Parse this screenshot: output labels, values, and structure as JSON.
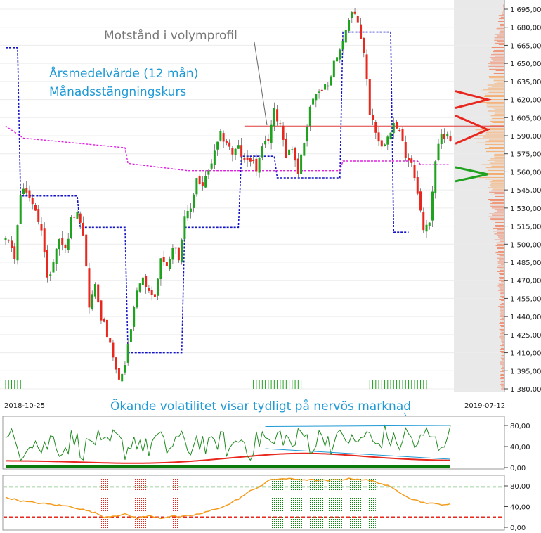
{
  "chart_data": [
    {
      "type": "candlestick",
      "panel": "price",
      "y_ticks": [
        "1 695,00",
        "1 680,00",
        "1 665,00",
        "1 650,00",
        "1 635,00",
        "1 620,00",
        "1 605,00",
        "1 590,00",
        "1 575,00",
        "1 560,00",
        "1 545,00",
        "1 530,00",
        "1 515,00",
        "1 500,00",
        "1 485,00",
        "1 470,00",
        "1 455,00",
        "1 440,00",
        "1 425,00",
        "1 410,00",
        "1 395,00",
        "1 380,00"
      ],
      "ylim": [
        1378,
        1700
      ],
      "x_start_label": "2018-10-25",
      "x_end_label": "2019-07-12",
      "bars": 144,
      "close_keypoints": [
        [
          0,
          1505
        ],
        [
          3,
          1490
        ],
        [
          5,
          1540
        ],
        [
          7,
          1545
        ],
        [
          9,
          1532
        ],
        [
          12,
          1515
        ],
        [
          14,
          1470
        ],
        [
          16,
          1485
        ],
        [
          18,
          1505
        ],
        [
          20,
          1495
        ],
        [
          22,
          1520
        ],
        [
          24,
          1530
        ],
        [
          26,
          1510
        ],
        [
          28,
          1450
        ],
        [
          30,
          1465
        ],
        [
          32,
          1440
        ],
        [
          34,
          1425
        ],
        [
          36,
          1405
        ],
        [
          38,
          1385
        ],
        [
          40,
          1400
        ],
        [
          42,
          1430
        ],
        [
          44,
          1460
        ],
        [
          46,
          1470
        ],
        [
          48,
          1462
        ],
        [
          50,
          1455
        ],
        [
          52,
          1490
        ],
        [
          54,
          1480
        ],
        [
          56,
          1500
        ],
        [
          58,
          1490
        ],
        [
          60,
          1520
        ],
        [
          62,
          1530
        ],
        [
          64,
          1555
        ],
        [
          66,
          1548
        ],
        [
          68,
          1560
        ],
        [
          70,
          1575
        ],
        [
          72,
          1590
        ],
        [
          74,
          1585
        ],
        [
          76,
          1575
        ],
        [
          78,
          1580
        ],
        [
          80,
          1568
        ],
        [
          82,
          1572
        ],
        [
          84,
          1562
        ],
        [
          86,
          1578
        ],
        [
          88,
          1588
        ],
        [
          90,
          1610
        ],
        [
          92,
          1600
        ],
        [
          94,
          1575
        ],
        [
          96,
          1580
        ],
        [
          98,
          1560
        ],
        [
          100,
          1585
        ],
        [
          102,
          1615
        ],
        [
          104,
          1625
        ],
        [
          106,
          1625
        ],
        [
          108,
          1635
        ],
        [
          110,
          1650
        ],
        [
          112,
          1660
        ],
        [
          114,
          1680
        ],
        [
          116,
          1692
        ],
        [
          118,
          1684
        ],
        [
          120,
          1660
        ],
        [
          122,
          1610
        ],
        [
          124,
          1595
        ],
        [
          126,
          1580
        ],
        [
          128,
          1592
        ],
        [
          130,
          1600
        ],
        [
          132,
          1592
        ],
        [
          134,
          1575
        ],
        [
          136,
          1568
        ],
        [
          138,
          1545
        ],
        [
          140,
          1510
        ],
        [
          142,
          1520
        ],
        [
          144,
          1570
        ],
        [
          146,
          1590
        ],
        [
          148,
          1592
        ],
        [
          149,
          1588
        ]
      ],
      "annual_average_keypoints": [
        [
          0,
          1598
        ],
        [
          6,
          1588
        ],
        [
          40,
          1580
        ],
        [
          41,
          1567
        ],
        [
          61,
          1561
        ],
        [
          112,
          1561
        ],
        [
          113,
          1569
        ],
        [
          138,
          1569
        ],
        [
          139,
          1566
        ],
        [
          149,
          1566
        ]
      ],
      "monthly_close_keypoints": [
        [
          0,
          1663
        ],
        [
          4,
          1663
        ],
        [
          5,
          1540
        ],
        [
          24,
          1540
        ],
        [
          25,
          1514
        ],
        [
          40,
          1514
        ],
        [
          41,
          1410
        ],
        [
          59,
          1410
        ],
        [
          60,
          1514
        ],
        [
          78,
          1514
        ],
        [
          79,
          1573
        ],
        [
          90,
          1573
        ],
        [
          91,
          1555
        ],
        [
          112,
          1555
        ],
        [
          113,
          1676
        ],
        [
          129,
          1676
        ],
        [
          130,
          1510
        ],
        [
          135,
          1510
        ]
      ],
      "resistance_level": 1598,
      "volume_profile_peaks": [
        1620,
        1595,
        1558
      ],
      "annotations": {
        "resistance": "Motstånd i volymprofil",
        "ma_label": "Årsmedelvärde (12 mån)",
        "mc_label": "Månadsstängningskurs",
        "volatility": "Ökande volatilitet visar tydligt på nervös marknad"
      },
      "colors": {
        "up": "#1fa31f",
        "down": "#e8281e",
        "annual_average": "#e020e0",
        "monthly_close": "#1515c8",
        "resistance": "#e03c3c",
        "annotation_text": "#1e9ad6"
      }
    },
    {
      "type": "line",
      "panel": "volatility",
      "y_ticks": [
        "80,00",
        "40,00",
        "0,00"
      ],
      "ylim": [
        0,
        100
      ],
      "upper_trend": [
        [
          87,
          78
        ],
        [
          149,
          80
        ]
      ],
      "lower_trend": [
        [
          87,
          36
        ],
        [
          149,
          16
        ]
      ],
      "colors": {
        "oscillator": "#1f8a1f",
        "smooth": "#e8281e",
        "base": "#0a7a0a",
        "trend": "#1e9ad6"
      }
    },
    {
      "type": "line",
      "panel": "oscillator",
      "y_ticks": [
        "80,00",
        "40,00",
        "0,00"
      ],
      "ylim": [
        0,
        100
      ],
      "upper_level": 78,
      "lower_level": 20,
      "series_keypoints": [
        [
          0,
          58
        ],
        [
          6,
          50
        ],
        [
          14,
          45
        ],
        [
          22,
          40
        ],
        [
          30,
          28
        ],
        [
          33,
          20
        ],
        [
          36,
          22
        ],
        [
          40,
          25
        ],
        [
          44,
          18
        ],
        [
          48,
          22
        ],
        [
          52,
          18
        ],
        [
          56,
          22
        ],
        [
          58,
          19
        ],
        [
          62,
          23
        ],
        [
          66,
          27
        ],
        [
          70,
          35
        ],
        [
          74,
          42
        ],
        [
          78,
          55
        ],
        [
          82,
          70
        ],
        [
          86,
          82
        ],
        [
          88,
          90
        ],
        [
          92,
          94
        ],
        [
          100,
          92
        ],
        [
          108,
          90
        ],
        [
          116,
          94
        ],
        [
          120,
          92
        ],
        [
          124,
          88
        ],
        [
          128,
          80
        ],
        [
          132,
          68
        ],
        [
          136,
          55
        ],
        [
          140,
          48
        ],
        [
          144,
          45
        ],
        [
          149,
          44
        ]
      ],
      "red_zones": [
        [
          32,
          35
        ],
        [
          42,
          48
        ],
        [
          54,
          58
        ]
      ],
      "green_zone": [
        88,
        124
      ],
      "colors": {
        "series": "#f39c1e",
        "upper": "#0a8a0a",
        "lower": "#e8281e"
      }
    }
  ]
}
